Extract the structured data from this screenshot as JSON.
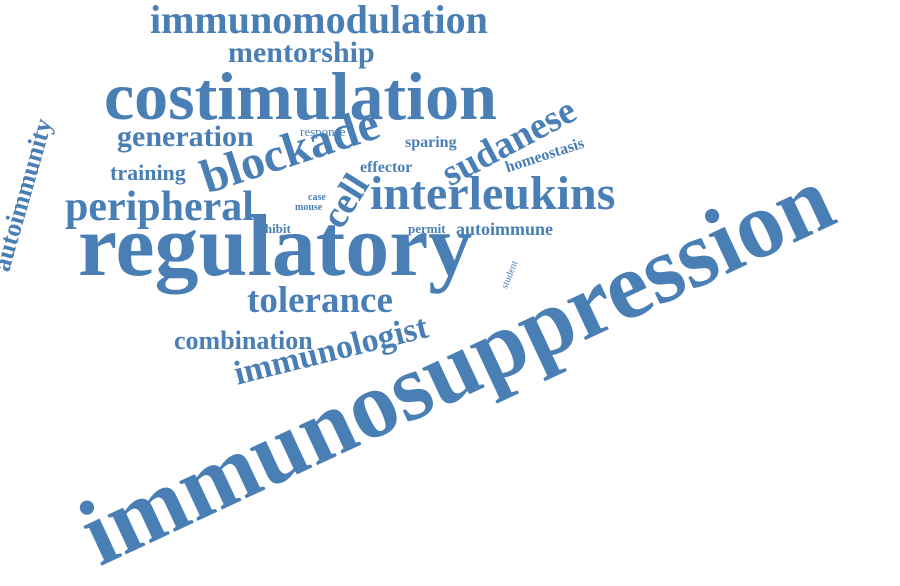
{
  "color": "#4a7fb5",
  "words": {
    "immunosuppression": "immunosuppression",
    "regulatory": "regulatory",
    "costimulation": "costimulation",
    "immunomodulation": "immunomodulation",
    "interleukins": "interleukins",
    "peripheral": "peripheral",
    "blockade": "blockade",
    "tolerance": "tolerance",
    "immunologist": "immunologist",
    "sudanese": "sudanese",
    "mentorship": "mentorship",
    "generation": "generation",
    "autoimmunity": "autoimmunity",
    "cell": "cell",
    "combination": "combination",
    "training": "training",
    "autoimmune": "autoimmune",
    "homeostasis": "homeostasis",
    "sparing": "sparing",
    "effector": "effector",
    "response": "response",
    "inhibit": "inhibit",
    "permit": "permit",
    "case": "case",
    "mouse": "mouse",
    "student": "student"
  }
}
